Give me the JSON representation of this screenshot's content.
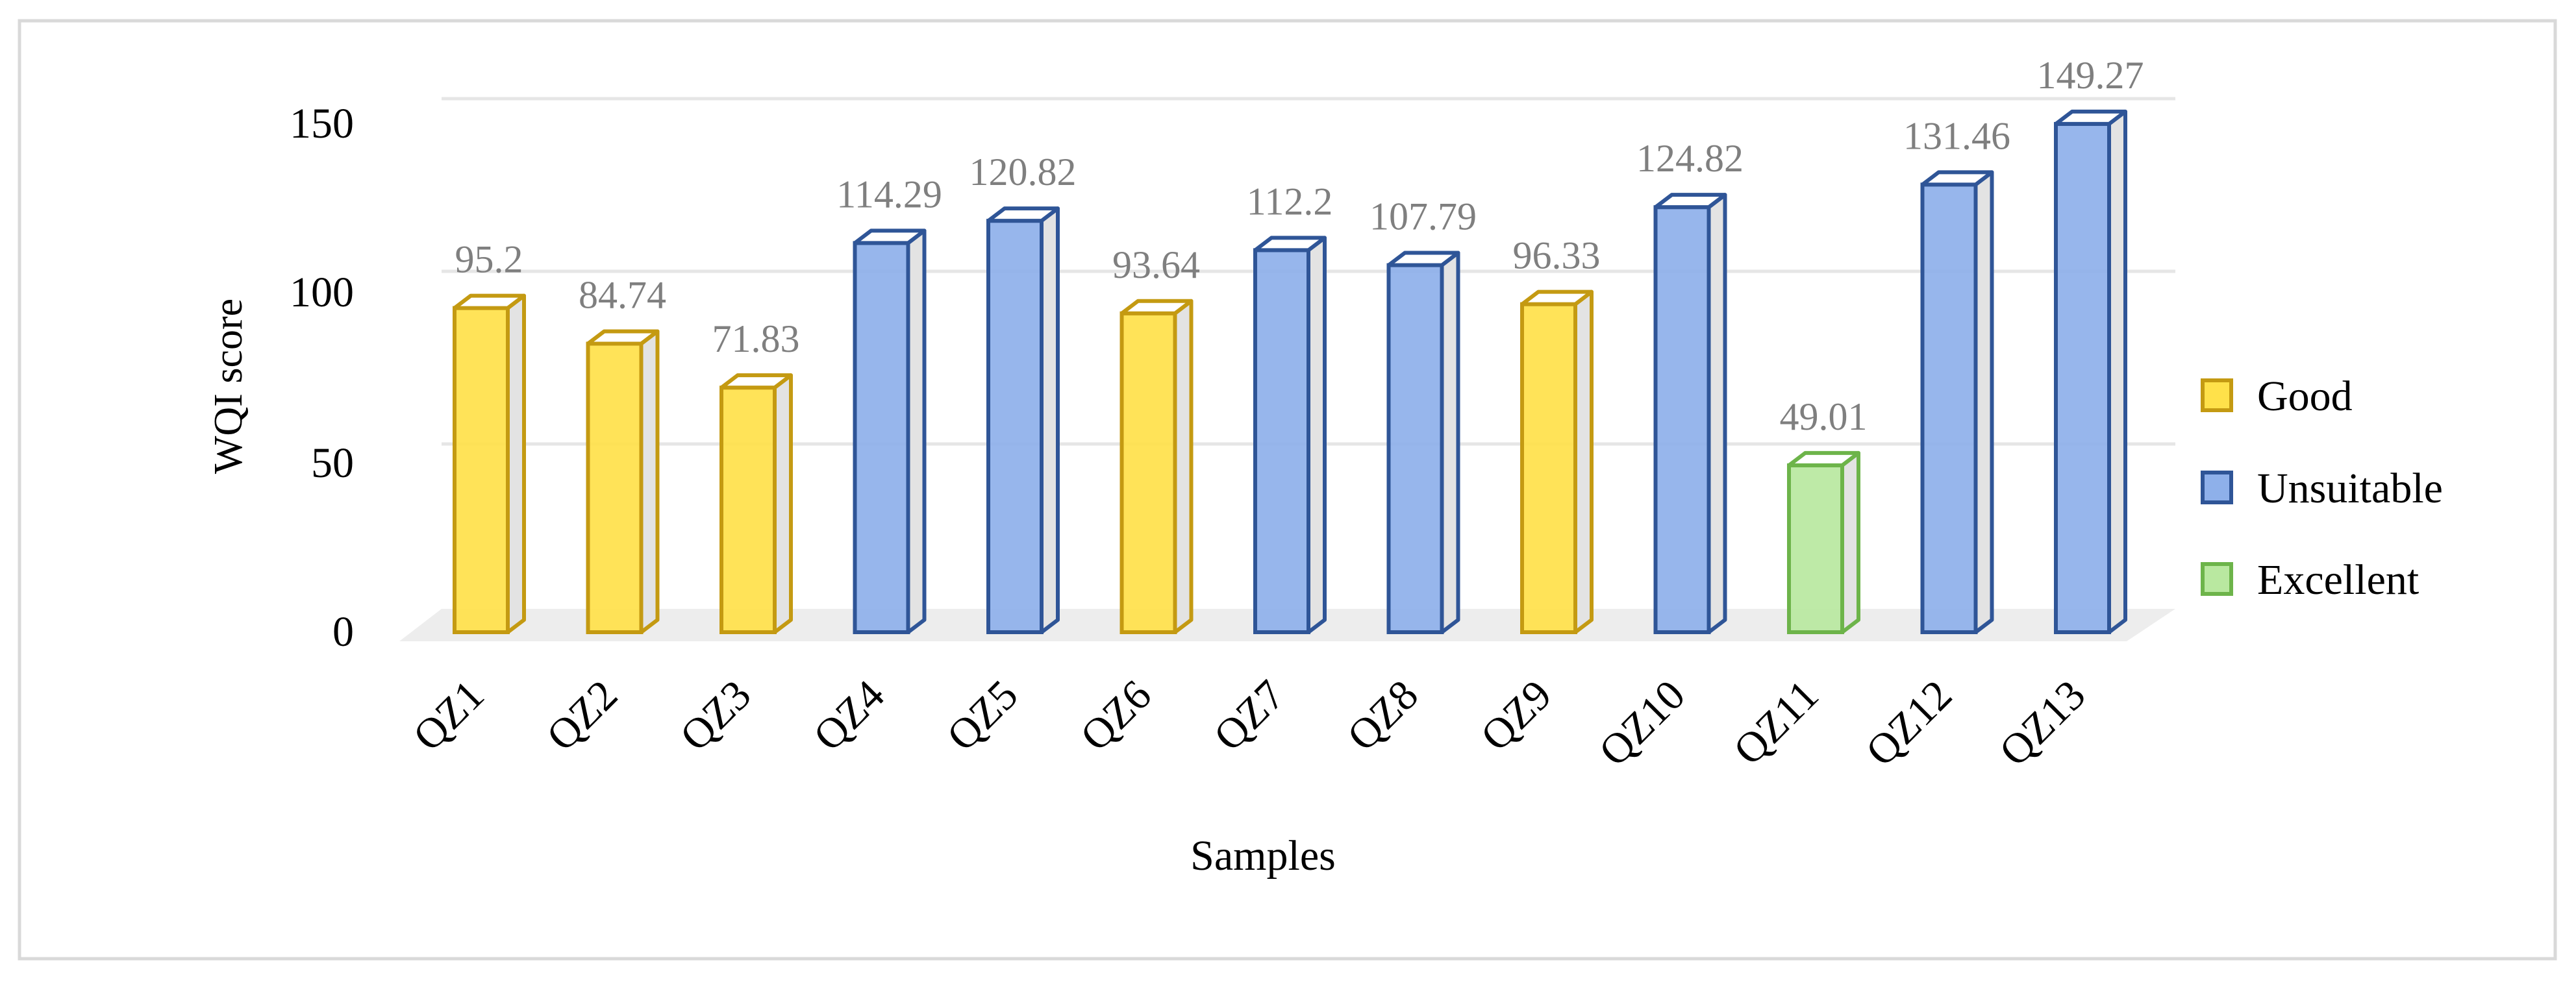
{
  "chart_data": {
    "type": "bar",
    "title": "",
    "xlabel": "Samples",
    "ylabel": "WQI score",
    "ylim": [
      0,
      150
    ],
    "yticks": [
      0,
      50,
      100,
      150
    ],
    "grid": true,
    "legend_position": "right",
    "categories": [
      "QZ1",
      "QZ2",
      "QZ3",
      "QZ4",
      "QZ5",
      "QZ6",
      "QZ7",
      "QZ8",
      "QZ9",
      "QZ10",
      "QZ11",
      "QZ12",
      "QZ13"
    ],
    "values": [
      95.2,
      84.74,
      71.83,
      114.29,
      120.82,
      93.64,
      112.2,
      107.79,
      96.33,
      124.82,
      49.01,
      131.46,
      149.27
    ],
    "value_labels": [
      "95.2",
      "84.74",
      "71.83",
      "114.29",
      "120.82",
      "93.64",
      "112.2",
      "107.79",
      "96.33",
      "124.82",
      "49.01",
      "131.46",
      "149.27"
    ],
    "classes": [
      "Good",
      "Good",
      "Good",
      "Unsuitable",
      "Unsuitable",
      "Good",
      "Unsuitable",
      "Unsuitable",
      "Good",
      "Unsuitable",
      "Excellent",
      "Unsuitable",
      "Unsuitable"
    ],
    "legend": [
      {
        "name": "Good",
        "fill": "#ffe14a",
        "stroke": "#c49a12"
      },
      {
        "name": "Unsuitable",
        "fill": "#8eb0ea",
        "stroke": "#2f5597"
      },
      {
        "name": "Excellent",
        "fill": "#b9e8a0",
        "stroke": "#6db44a"
      }
    ]
  }
}
